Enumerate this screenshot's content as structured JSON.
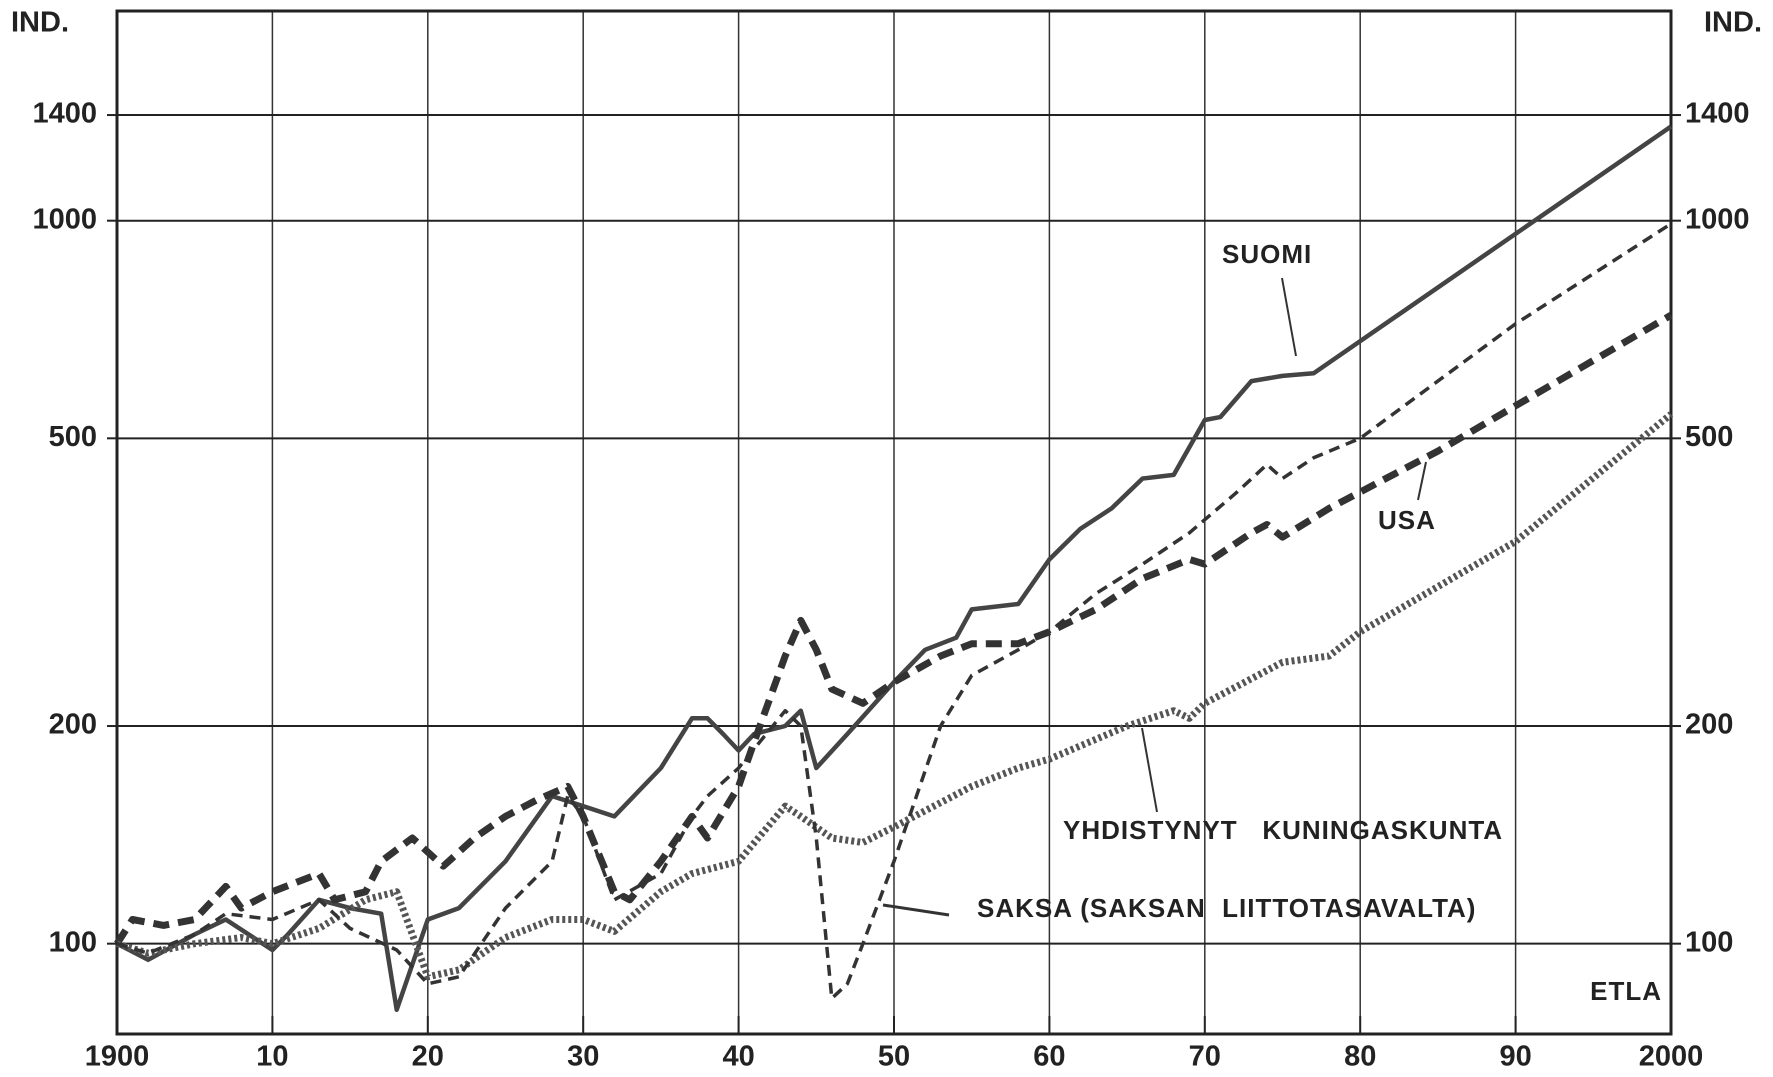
{
  "chart_data": {
    "type": "line",
    "y_axis_label": "IND.",
    "source": "ETLA",
    "log_scale": true,
    "grid": true,
    "xlim": [
      1900,
      2000
    ],
    "ylim": [
      75,
      1950
    ],
    "xticks": [
      1900,
      {
        "value": 1910,
        "label": "10"
      },
      {
        "value": 1920,
        "label": "20"
      },
      {
        "value": 1930,
        "label": "30"
      },
      {
        "value": 1940,
        "label": "40"
      },
      {
        "value": 1950,
        "label": "50"
      },
      {
        "value": 1960,
        "label": "60"
      },
      {
        "value": 1970,
        "label": "70"
      },
      {
        "value": 1980,
        "label": "80"
      },
      {
        "value": 1990,
        "label": "90"
      },
      2000
    ],
    "yticks": [
      100,
      200,
      500,
      1000,
      1400
    ],
    "series": [
      {
        "name": "SUOMI",
        "color": "#444444",
        "style": "solid",
        "x": [
          1900,
          1902,
          1905,
          1907,
          1910,
          1911,
          1913,
          1915,
          1917,
          1918,
          1920,
          1922,
          1925,
          1928,
          1930,
          1932,
          1935,
          1937,
          1938,
          1939,
          1940,
          1941,
          1943,
          1944,
          1945,
          1947,
          1950,
          1952,
          1954,
          1955,
          1958,
          1960,
          1962,
          1964,
          1966,
          1968,
          1970,
          1971,
          1973,
          1975,
          1977,
          2000
        ],
        "values": [
          100,
          95,
          103,
          108,
          98,
          103,
          115,
          112,
          110,
          81,
          108,
          112,
          130,
          160,
          155,
          150,
          175,
          205,
          205,
          195,
          185,
          195,
          200,
          210,
          175,
          195,
          230,
          255,
          265,
          290,
          295,
          340,
          375,
          400,
          440,
          445,
          530,
          535,
          600,
          610,
          615,
          1350
        ]
      },
      {
        "name": "USA",
        "color": "#333333",
        "style": "dashed",
        "x": [
          1900,
          1901,
          1903,
          1905,
          1907,
          1908,
          1910,
          1913,
          1914,
          1916,
          1917,
          1919,
          1921,
          1923,
          1925,
          1927,
          1929,
          1930,
          1932,
          1933,
          1935,
          1937,
          1938,
          1940,
          1941,
          1943,
          1944,
          1945,
          1946,
          1948,
          1950,
          1953,
          1955,
          1958,
          1960,
          1963,
          1966,
          1969,
          1970,
          1973,
          1974,
          1975,
          1978,
          1985,
          2000
        ],
        "values": [
          100,
          108,
          106,
          108,
          120,
          112,
          118,
          125,
          115,
          118,
          130,
          140,
          128,
          140,
          150,
          158,
          165,
          150,
          118,
          115,
          130,
          150,
          140,
          165,
          190,
          250,
          280,
          255,
          225,
          215,
          230,
          250,
          260,
          260,
          270,
          290,
          320,
          340,
          335,
          370,
          380,
          365,
          400,
          480,
          740
        ]
      },
      {
        "name": "YHDISTYNYT   KUNINGASKUNTA",
        "color": "#555555",
        "style": "dotted",
        "x": [
          1900,
          1902,
          1905,
          1908,
          1910,
          1913,
          1916,
          1918,
          1920,
          1922,
          1925,
          1928,
          1930,
          1932,
          1935,
          1937,
          1940,
          1943,
          1944,
          1946,
          1948,
          1950,
          1955,
          1958,
          1960,
          1965,
          1968,
          1969,
          1970,
          1975,
          1978,
          1980,
          1990,
          2000
        ],
        "values": [
          100,
          97,
          100,
          102,
          100,
          105,
          115,
          118,
          90,
          92,
          102,
          108,
          108,
          104,
          118,
          125,
          130,
          155,
          150,
          140,
          138,
          145,
          165,
          175,
          180,
          200,
          210,
          205,
          215,
          245,
          250,
          270,
          360,
          540
        ]
      },
      {
        "name": "SAKSA (SAKSAN  LIITTOTASAVALTA)",
        "color": "#333333",
        "style": "thin-dashed",
        "x": [
          1900,
          1902,
          1905,
          1907,
          1910,
          1913,
          1915,
          1918,
          1920,
          1922,
          1925,
          1928,
          1929,
          1930,
          1932,
          1935,
          1937,
          1938,
          1940,
          1943,
          1944,
          1945,
          1946,
          1947,
          1948,
          1950,
          1953,
          1955,
          1958,
          1960,
          1963,
          1966,
          1969,
          1972,
          1974,
          1975,
          1977,
          1980,
          1990,
          2000
        ],
        "values": [
          100,
          97,
          103,
          110,
          108,
          115,
          105,
          98,
          88,
          90,
          112,
          130,
          160,
          150,
          115,
          125,
          150,
          160,
          175,
          210,
          200,
          140,
          84,
          88,
          100,
          130,
          200,
          235,
          255,
          270,
          305,
          335,
          370,
          420,
          460,
          440,
          470,
          500,
          720,
          990
        ]
      }
    ]
  }
}
